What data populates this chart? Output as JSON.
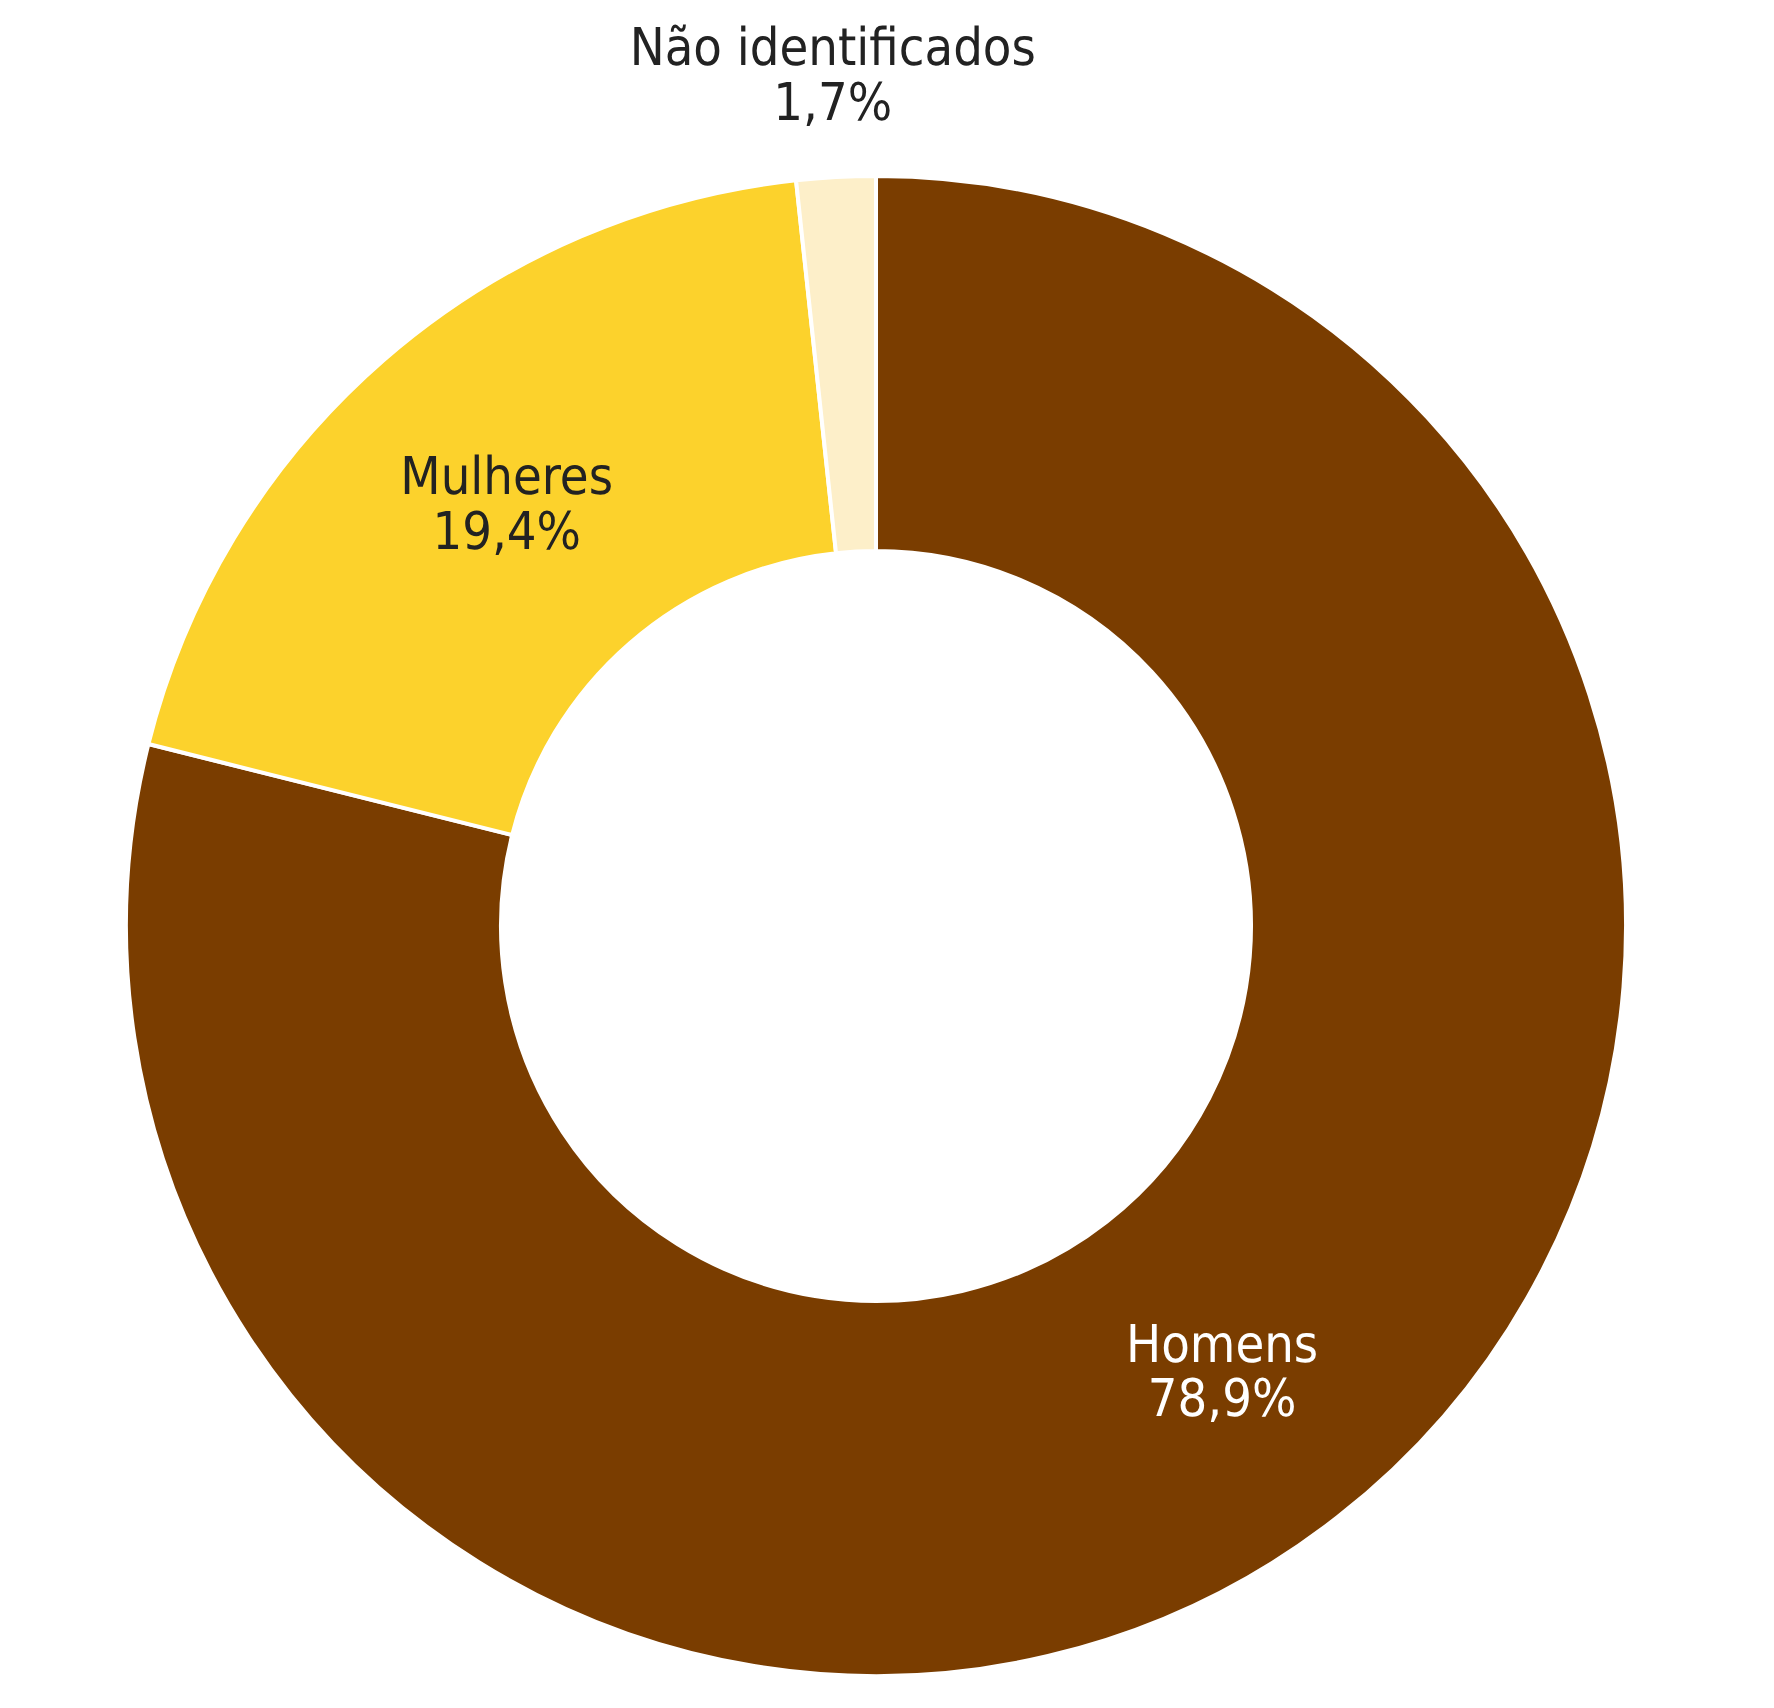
{
  "chart_data": {
    "type": "donut",
    "categories": [
      "Homens",
      "Mulheres",
      "Não identificados"
    ],
    "values": [
      78.9,
      19.4,
      1.7
    ],
    "value_labels": [
      "78,9%",
      "19,4%",
      "1,7%"
    ],
    "colors": [
      "#7a3d00",
      "#fcd22c",
      "#fdefc9"
    ]
  }
}
